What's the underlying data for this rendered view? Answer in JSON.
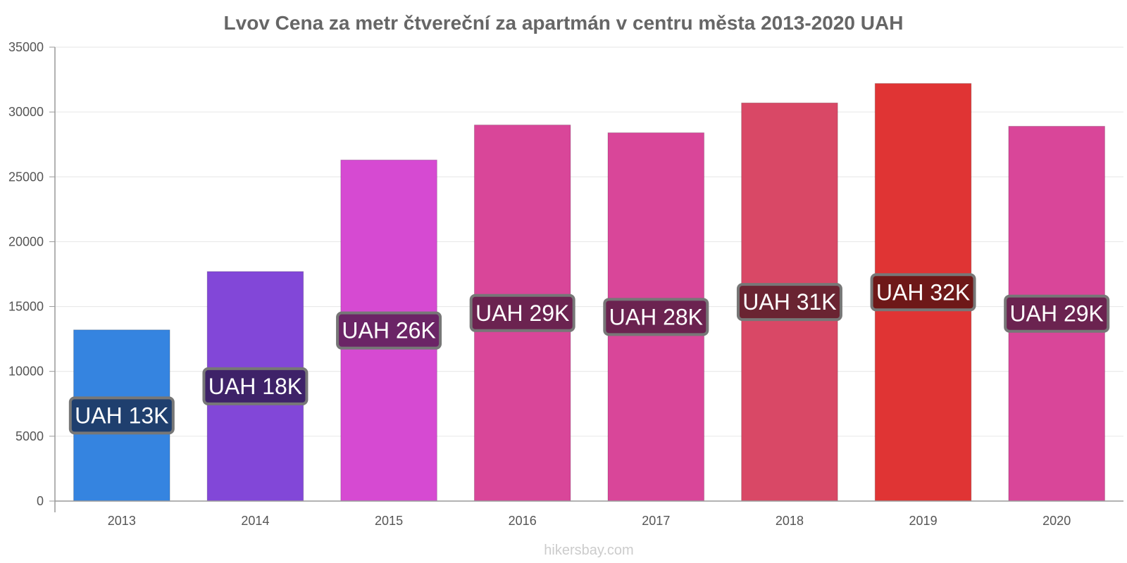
{
  "chart_data": {
    "type": "bar",
    "title": "Lvov Cena za metr čtvereční za apartmán v centru města 2013-2020 UAH",
    "categories": [
      "2013",
      "2014",
      "2015",
      "2016",
      "2017",
      "2018",
      "2019",
      "2020"
    ],
    "values": [
      13200,
      17700,
      26300,
      29000,
      28400,
      30700,
      32200,
      28900
    ],
    "data_labels": [
      "UAH 13K",
      "UAH 18K",
      "UAH 26K",
      "UAH 29K",
      "UAH 28K",
      "UAH 31K",
      "UAH 32K",
      "UAH 29K"
    ],
    "colors": [
      "#3584e0",
      "#8247d8",
      "#d64ad2",
      "#d94699",
      "#d94699",
      "#d94866",
      "#e03434",
      "#d94699"
    ],
    "label_colors": [
      "#1f3f6e",
      "#3e2268",
      "#6b2466",
      "#6b2350",
      "#6b2350",
      "#6a2432",
      "#6e1818",
      "#6b2350"
    ],
    "yticks": [
      0,
      5000,
      10000,
      15000,
      20000,
      25000,
      30000,
      35000
    ],
    "ylim": [
      0,
      35000
    ],
    "xlabel": "",
    "ylabel": "",
    "grid": true,
    "legend": "none"
  },
  "credit": "hikersbay.com"
}
